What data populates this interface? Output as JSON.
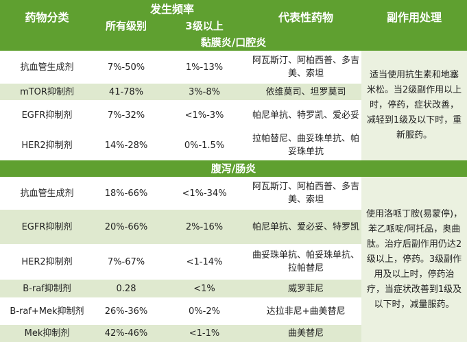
{
  "header": {
    "col_class": "药物分类",
    "col_freq": "发生频率",
    "col_all": "所有级别",
    "col_g3": "3级以上",
    "col_rep": "代表性药物",
    "col_manage": "副作用处理"
  },
  "sections": [
    {
      "title": "黏膜炎/口腔炎",
      "management": "适当使用抗生素和地塞米松。当2级副作用以上时，停药，症状改善，减轻到1级及以下时，重新服药。",
      "rows": [
        {
          "cls": "抗血管生成剂",
          "all": "7%-50%",
          "g3": "1%-13%",
          "rep": "阿瓦斯汀、阿柏西普、多吉美、索坦"
        },
        {
          "cls": "mTOR抑制剂",
          "all": "41-78%",
          "g3": "3%-8%",
          "rep": "依维莫司、坦罗莫司"
        },
        {
          "cls": "EGFR抑制剂",
          "all": "7%-32%",
          "g3": "<1%-3%",
          "rep": "帕尼单抗、特罗凯、爱必妥"
        },
        {
          "cls": "HER2抑制剂",
          "all": "14%-28%",
          "g3": "0%-1.5%",
          "rep": "拉帕替尼、曲妥珠单抗、帕妥珠单抗"
        }
      ]
    },
    {
      "title": "腹泻/肠炎",
      "management": "使用洛哌丁胺(易蒙停)，苯乙哌啶/阿托品，奥曲肽。治疗后副作用仍达2级以上，停药。3级副作用及以上时，停药治疗，当症状改善到1级及以下时，减量服药。",
      "rows": [
        {
          "cls": "抗血管生成剂",
          "all": "18%-66%",
          "g3": "<1%-34%",
          "rep": "阿瓦斯汀、阿柏西普、多吉美、索坦"
        },
        {
          "cls": "EGFR抑制剂",
          "all": "20%-66%",
          "g3": "2%-16%",
          "rep": "帕尼单抗、爱必妥、特罗凯"
        },
        {
          "cls": "HER2抑制剂",
          "all": "7%-67%",
          "g3": "<1-14%",
          "rep": "曲妥珠单抗、帕妥珠单抗、拉帕替尼"
        },
        {
          "cls": "B-raf抑制剂",
          "all": "0.28",
          "g3": "<1%",
          "rep": "威罗菲尼"
        },
        {
          "cls": "B-raf+Mek抑制剂",
          "all": "26%-36%",
          "g3": "0%-2%",
          "rep": "达拉非尼+曲美替尼"
        },
        {
          "cls": "Mek抑制剂",
          "all": "42%-46%",
          "g3": "<1-1%",
          "rep": "曲美替尼"
        }
      ]
    }
  ]
}
